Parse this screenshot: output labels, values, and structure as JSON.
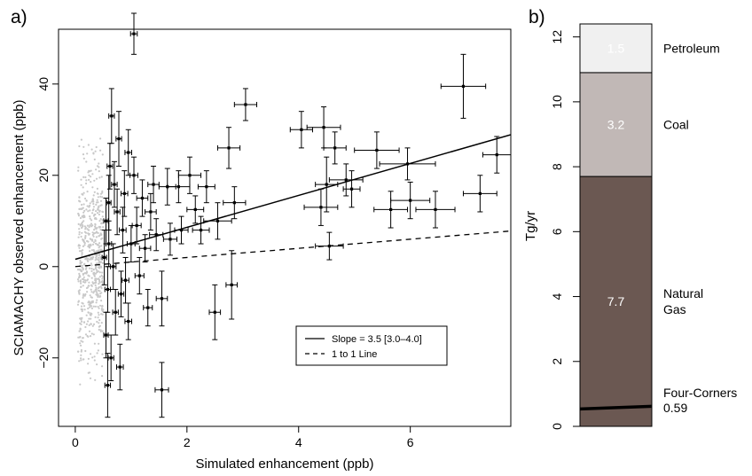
{
  "chart_data": [
    {
      "panel_label": "a)",
      "type": "scatter",
      "xlabel": "Simulated enhancement (ppb)",
      "ylabel": "SCIAMACHY observed enhancement (ppb)",
      "xlim": [
        -0.3,
        7.8
      ],
      "ylim": [
        -35,
        52
      ],
      "x_ticks": [
        0,
        2,
        4,
        6
      ],
      "y_ticks": [
        -20,
        0,
        20,
        40
      ],
      "x_tick_labels": [
        "0",
        "2",
        "4",
        "6"
      ],
      "y_tick_labels": [
        "−20",
        "0",
        "20",
        "40"
      ],
      "legend": {
        "position": "bottom-right",
        "entries": [
          {
            "label": "Slope = 3.5 [3.0–4.0]",
            "style": "solid"
          },
          {
            "label": "1 to 1 Line",
            "style": "dashed"
          }
        ]
      },
      "fit_line": {
        "intercept": 1.6,
        "slope": 3.5
      },
      "one_to_one_line": {
        "intercept": 0,
        "slope": 1
      },
      "background_points": {
        "color": "#c8c8c8",
        "x_range": [
          0.05,
          0.5
        ],
        "y_range": [
          -30,
          32
        ],
        "count": 600
      },
      "series": [
        {
          "style": "error_bars",
          "points": [
            {
              "x": 1.05,
              "y": 51,
              "xerr": 0.06,
              "yerr": 4.5
            },
            {
              "x": 3.05,
              "y": 35.5,
              "xerr": 0.2,
              "yerr": 3.5
            },
            {
              "x": 6.95,
              "y": 39.5,
              "xerr": 0.4,
              "yerr": 7
            },
            {
              "x": 2.75,
              "y": 26,
              "xerr": 0.2,
              "yerr": 4.5
            },
            {
              "x": 4.05,
              "y": 30,
              "xerr": 0.2,
              "yerr": 4
            },
            {
              "x": 4.45,
              "y": 30.5,
              "xerr": 0.3,
              "yerr": 4.5
            },
            {
              "x": 4.65,
              "y": 26,
              "xerr": 0.2,
              "yerr": 3.5
            },
            {
              "x": 5.4,
              "y": 25.5,
              "xerr": 0.4,
              "yerr": 4
            },
            {
              "x": 5.95,
              "y": 22.5,
              "xerr": 0.5,
              "yerr": 3.5
            },
            {
              "x": 7.55,
              "y": 24.5,
              "xerr": 0.25,
              "yerr": 4
            },
            {
              "x": 7.25,
              "y": 16,
              "xerr": 0.3,
              "yerr": 4
            },
            {
              "x": 6.45,
              "y": 12.5,
              "xerr": 0.35,
              "yerr": 4
            },
            {
              "x": 6.0,
              "y": 14.5,
              "xerr": 0.35,
              "yerr": 4
            },
            {
              "x": 5.65,
              "y": 12.5,
              "xerr": 0.3,
              "yerr": 4
            },
            {
              "x": 4.85,
              "y": 19,
              "xerr": 0.3,
              "yerr": 3.5
            },
            {
              "x": 4.95,
              "y": 17,
              "xerr": 0.15,
              "yerr": 4
            },
            {
              "x": 4.5,
              "y": 18,
              "xerr": 0.2,
              "yerr": 6
            },
            {
              "x": 4.4,
              "y": 13,
              "xerr": 0.3,
              "yerr": 4
            },
            {
              "x": 4.55,
              "y": 4.5,
              "xerr": 0.25,
              "yerr": 3
            },
            {
              "x": 2.85,
              "y": 14,
              "xerr": 0.2,
              "yerr": 3.5
            },
            {
              "x": 2.55,
              "y": 10,
              "xerr": 0.25,
              "yerr": 4
            },
            {
              "x": 2.35,
              "y": 17.5,
              "xerr": 0.15,
              "yerr": 3.5
            },
            {
              "x": 2.05,
              "y": 20,
              "xerr": 0.2,
              "yerr": 4
            },
            {
              "x": 1.85,
              "y": 17.5,
              "xerr": 0.2,
              "yerr": 3.5
            },
            {
              "x": 1.65,
              "y": 17.5,
              "xerr": 0.15,
              "yerr": 4
            },
            {
              "x": 2.15,
              "y": 12.5,
              "xerr": 0.15,
              "yerr": 3
            },
            {
              "x": 2.5,
              "y": -10,
              "xerr": 0.1,
              "yerr": 6
            },
            {
              "x": 2.8,
              "y": -4,
              "xerr": 0.1,
              "yerr": 7.5
            },
            {
              "x": 1.55,
              "y": -7,
              "xerr": 0.1,
              "yerr": 6
            },
            {
              "x": 1.55,
              "y": -27,
              "xerr": 0.12,
              "yerr": 6
            },
            {
              "x": 0.8,
              "y": -22,
              "xerr": 0.06,
              "yerr": 5
            },
            {
              "x": 0.58,
              "y": -26,
              "xerr": 0.05,
              "yerr": 7
            },
            {
              "x": 1.35,
              "y": 12,
              "xerr": 0.1,
              "yerr": 4
            },
            {
              "x": 1.45,
              "y": 7,
              "xerr": 0.12,
              "yerr": 3.5
            },
            {
              "x": 1.25,
              "y": 4,
              "xerr": 0.1,
              "yerr": 3
            },
            {
              "x": 1.15,
              "y": -2,
              "xerr": 0.08,
              "yerr": 4
            },
            {
              "x": 1.1,
              "y": 9,
              "xerr": 0.08,
              "yerr": 4
            },
            {
              "x": 1.2,
              "y": 15,
              "xerr": 0.1,
              "yerr": 4
            },
            {
              "x": 0.95,
              "y": 25,
              "xerr": 0.06,
              "yerr": 5
            },
            {
              "x": 0.65,
              "y": 33,
              "xerr": 0.05,
              "yerr": 6
            },
            {
              "x": 0.62,
              "y": 22,
              "xerr": 0.05,
              "yerr": 5
            },
            {
              "x": 0.7,
              "y": 18,
              "xerr": 0.05,
              "yerr": 5
            },
            {
              "x": 0.75,
              "y": 12,
              "xerr": 0.05,
              "yerr": 5
            },
            {
              "x": 0.55,
              "y": 10,
              "xerr": 0.04,
              "yerr": 5
            },
            {
              "x": 0.6,
              "y": 5,
              "xerr": 0.05,
              "yerr": 5
            },
            {
              "x": 0.68,
              "y": 0,
              "xerr": 0.05,
              "yerr": 5
            },
            {
              "x": 0.58,
              "y": -5,
              "xerr": 0.05,
              "yerr": 5
            },
            {
              "x": 0.72,
              "y": -10,
              "xerr": 0.05,
              "yerr": 5
            },
            {
              "x": 0.55,
              "y": -15,
              "xerr": 0.04,
              "yerr": 5
            },
            {
              "x": 0.85,
              "y": 8,
              "xerr": 0.06,
              "yerr": 5
            },
            {
              "x": 0.9,
              "y": -3,
              "xerr": 0.06,
              "yerr": 5
            },
            {
              "x": 0.88,
              "y": 16,
              "xerr": 0.06,
              "yerr": 5
            },
            {
              "x": 1.0,
              "y": 5,
              "xerr": 0.07,
              "yerr": 4
            },
            {
              "x": 0.52,
              "y": 2,
              "xerr": 0.04,
              "yerr": 6
            },
            {
              "x": 0.64,
              "y": -20,
              "xerr": 0.05,
              "yerr": 5
            },
            {
              "x": 0.78,
              "y": 28,
              "xerr": 0.05,
              "yerr": 6
            },
            {
              "x": 1.3,
              "y": -9,
              "xerr": 0.08,
              "yerr": 4
            },
            {
              "x": 0.95,
              "y": -12,
              "xerr": 0.06,
              "yerr": 4
            },
            {
              "x": 1.05,
              "y": 20,
              "xerr": 0.07,
              "yerr": 4
            },
            {
              "x": 1.4,
              "y": 18,
              "xerr": 0.1,
              "yerr": 4
            },
            {
              "x": 0.6,
              "y": 14,
              "xerr": 0.04,
              "yerr": 6
            },
            {
              "x": 0.82,
              "y": -6,
              "xerr": 0.05,
              "yerr": 5
            },
            {
              "x": 1.7,
              "y": 6,
              "xerr": 0.12,
              "yerr": 3.5
            },
            {
              "x": 1.9,
              "y": 8,
              "xerr": 0.12,
              "yerr": 3
            },
            {
              "x": 2.25,
              "y": 8,
              "xerr": 0.15,
              "yerr": 3
            }
          ]
        }
      ]
    },
    {
      "panel_label": "b)",
      "type": "bar",
      "stacked": true,
      "ylabel": "Tg/yr",
      "ylim": [
        0,
        12.4
      ],
      "y_ticks": [
        0,
        2,
        4,
        6,
        8,
        10,
        12
      ],
      "y_tick_labels": [
        "0",
        "2",
        "4",
        "6",
        "8",
        "10",
        "12"
      ],
      "segments": [
        {
          "label": "Natural Gas",
          "label_lines": [
            "Natural",
            "Gas"
          ],
          "value": 7.7,
          "display_value": "7.7",
          "color": "#6b5852"
        },
        {
          "label": "Coal",
          "label_lines": [
            "Coal"
          ],
          "value": 3.2,
          "display_value": "3.2",
          "color": "#c1b8b6"
        },
        {
          "label": "Petroleum",
          "label_lines": [
            "Petroleum"
          ],
          "value": 1.5,
          "display_value": "1.5",
          "color": "#f0f0f0"
        }
      ],
      "marker": {
        "label_lines": [
          "Four-Corners",
          "0.59"
        ],
        "value": 0.59,
        "color": "#000000"
      }
    }
  ]
}
